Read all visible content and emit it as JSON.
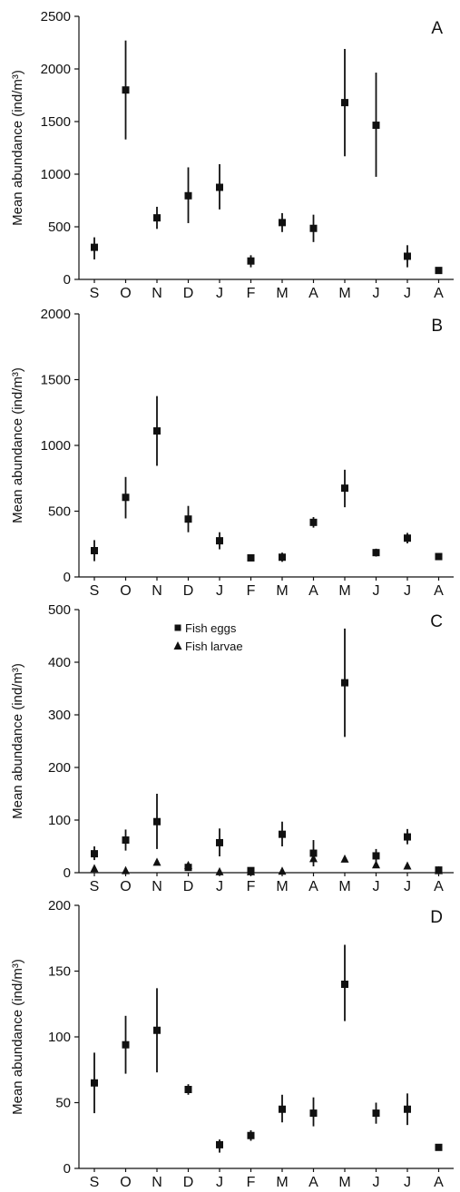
{
  "chart_data": [
    {
      "type": "scatter",
      "panel": "A",
      "ylabel": "Mean abundance (ind/m³)",
      "categories": [
        "S",
        "O",
        "N",
        "D",
        "J",
        "F",
        "M",
        "A",
        "M",
        "J",
        "J",
        "A"
      ],
      "ylim": [
        0,
        2500
      ],
      "yticks": [
        0,
        500,
        1000,
        1500,
        2000,
        2500
      ],
      "series": [
        {
          "marker": "square",
          "values": [
            305,
            1800,
            585,
            795,
            875,
            175,
            540,
            485,
            1680,
            1465,
            220,
            85
          ],
          "err_low": [
            190,
            1330,
            480,
            535,
            665,
            115,
            450,
            355,
            1170,
            975,
            115,
            85
          ],
          "err_high": [
            400,
            2270,
            690,
            1065,
            1095,
            230,
            630,
            615,
            2190,
            1965,
            325,
            85
          ]
        }
      ]
    },
    {
      "type": "scatter",
      "panel": "B",
      "ylabel": "Mean abundance (ind/m³)",
      "categories": [
        "S",
        "O",
        "N",
        "D",
        "J",
        "F",
        "M",
        "A",
        "M",
        "J",
        "J",
        "A"
      ],
      "ylim": [
        0,
        2000
      ],
      "yticks": [
        0,
        500,
        1000,
        1500,
        2000
      ],
      "series": [
        {
          "marker": "square",
          "values": [
            200,
            605,
            1110,
            440,
            275,
            145,
            150,
            415,
            675,
            185,
            295,
            155
          ],
          "err_low": [
            120,
            445,
            845,
            340,
            210,
            145,
            115,
            375,
            530,
            155,
            255,
            155
          ],
          "err_high": [
            280,
            760,
            1375,
            540,
            340,
            145,
            185,
            455,
            815,
            215,
            335,
            155
          ]
        }
      ]
    },
    {
      "type": "scatter",
      "panel": "C",
      "ylabel": "Mean abundance (ind/m³)",
      "categories": [
        "S",
        "O",
        "N",
        "D",
        "J",
        "F",
        "M",
        "A",
        "M",
        "J",
        "J",
        "A"
      ],
      "ylim": [
        0,
        500
      ],
      "yticks": [
        0,
        100,
        200,
        300,
        400,
        500
      ],
      "legend": [
        "Fish eggs",
        "Fish larvae"
      ],
      "series": [
        {
          "name": "Fish eggs",
          "marker": "square",
          "values": [
            36,
            62,
            97,
            10,
            57,
            4,
            73,
            37,
            361,
            32,
            68,
            5
          ],
          "err_low": [
            24,
            42,
            45,
            10,
            31,
            4,
            50,
            12,
            258,
            18,
            54,
            5
          ],
          "err_high": [
            50,
            82,
            150,
            10,
            84,
            4,
            97,
            62,
            464,
            45,
            83,
            5
          ]
        },
        {
          "name": "Fish larvae",
          "marker": "triangle",
          "values": [
            8,
            4,
            20,
            14,
            2,
            2,
            3,
            27,
            26,
            15,
            13,
            4
          ]
        }
      ]
    },
    {
      "type": "scatter",
      "panel": "D",
      "ylabel": "Mean abundance (ind/m³)",
      "categories": [
        "S",
        "O",
        "N",
        "D",
        "J",
        "F",
        "M",
        "A",
        "M",
        "J",
        "J",
        "A"
      ],
      "ylim": [
        0,
        200
      ],
      "yticks": [
        0,
        50,
        100,
        150,
        200
      ],
      "series": [
        {
          "marker": "square",
          "values": [
            65,
            94,
            105,
            60,
            18,
            25,
            45,
            42,
            140,
            42,
            45,
            16
          ],
          "err_low": [
            42,
            72,
            73,
            56,
            12,
            21,
            35,
            32,
            112,
            34,
            33,
            16
          ],
          "err_high": [
            88,
            116,
            137,
            64,
            22,
            29,
            56,
            54,
            170,
            50,
            57,
            16
          ]
        }
      ]
    }
  ]
}
